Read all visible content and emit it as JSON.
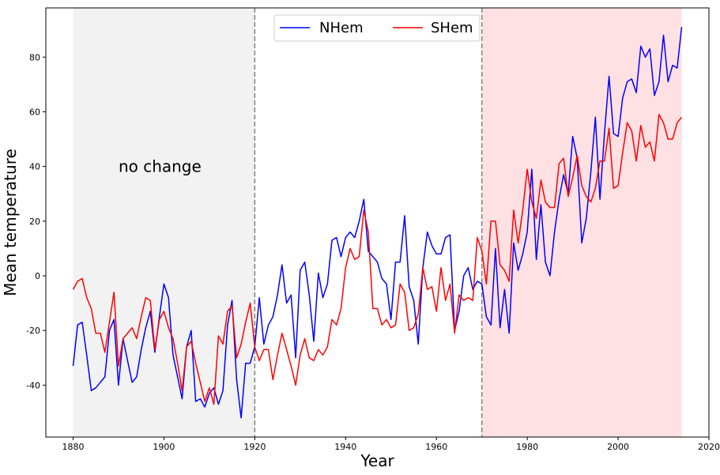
{
  "chart_data": {
    "type": "line",
    "xlabel": "Year",
    "ylabel": "Mean temperature",
    "xlim": [
      1874,
      2020
    ],
    "ylim": [
      -59,
      98
    ],
    "xticks": [
      1880,
      1900,
      1920,
      1940,
      1960,
      1980,
      2000,
      2020
    ],
    "yticks": [
      -40,
      -20,
      0,
      20,
      40,
      60,
      80
    ],
    "legend": {
      "placement": "top-center",
      "columns": 2
    },
    "grid": false,
    "annotations": [
      {
        "text": "no change",
        "x": 1890,
        "y": 40
      }
    ],
    "vlines": [
      {
        "x": 1920,
        "style": "dashed",
        "color": "#808080"
      },
      {
        "x": 1970,
        "style": "dashed",
        "color": "#808080"
      }
    ],
    "spans": [
      {
        "x_start": 1880,
        "x_end": 1920,
        "color": "#f2f2f2"
      },
      {
        "x_start": 1970,
        "x_end": 2014,
        "color": "#ffe0e3"
      }
    ],
    "x": [
      1880,
      1881,
      1882,
      1883,
      1884,
      1885,
      1886,
      1887,
      1888,
      1889,
      1890,
      1891,
      1892,
      1893,
      1894,
      1895,
      1896,
      1897,
      1898,
      1899,
      1900,
      1901,
      1902,
      1903,
      1904,
      1905,
      1906,
      1907,
      1908,
      1909,
      1910,
      1911,
      1912,
      1913,
      1914,
      1915,
      1916,
      1917,
      1918,
      1919,
      1920,
      1921,
      1922,
      1923,
      1924,
      1925,
      1926,
      1927,
      1928,
      1929,
      1930,
      1931,
      1932,
      1933,
      1934,
      1935,
      1936,
      1937,
      1938,
      1939,
      1940,
      1941,
      1942,
      1943,
      1944,
      1945,
      1946,
      1947,
      1948,
      1949,
      1950,
      1951,
      1952,
      1953,
      1954,
      1955,
      1956,
      1957,
      1958,
      1959,
      1960,
      1961,
      1962,
      1963,
      1964,
      1965,
      1966,
      1967,
      1968,
      1969,
      1970,
      1971,
      1972,
      1973,
      1974,
      1975,
      1976,
      1977,
      1978,
      1979,
      1980,
      1981,
      1982,
      1983,
      1984,
      1985,
      1986,
      1987,
      1988,
      1989,
      1990,
      1991,
      1992,
      1993,
      1994,
      1995,
      1996,
      1997,
      1998,
      1999,
      2000,
      2001,
      2002,
      2003,
      2004,
      2005,
      2006,
      2007,
      2008,
      2009,
      2010,
      2011,
      2012,
      2013,
      2014
    ],
    "series": [
      {
        "name": "NHem",
        "color": "#0000ff",
        "values": [
          -33,
          -18,
          -17,
          -29,
          -42,
          -41,
          -39,
          -37,
          -20,
          -16,
          -40,
          -23,
          -31,
          -39,
          -37,
          -27,
          -19,
          -13,
          -28,
          -15,
          -3,
          -8,
          -29,
          -37,
          -45,
          -26,
          -20,
          -46,
          -45,
          -48,
          -43,
          -41,
          -47,
          -42,
          -18,
          -9,
          -38,
          -52,
          -32,
          -32,
          -26,
          -8,
          -25,
          -18,
          -15,
          -7,
          4,
          -10,
          -7,
          -30,
          2,
          5,
          -7,
          -24,
          1,
          -8,
          -3,
          13,
          14,
          7,
          14,
          16,
          14,
          20,
          28,
          9,
          7,
          5,
          -1,
          -3,
          -16,
          5,
          5,
          22,
          -4,
          -9,
          -25,
          3,
          16,
          11,
          8,
          8,
          14,
          15,
          -20,
          -13,
          0,
          3,
          -5,
          -2,
          -3,
          -15,
          -18,
          10,
          -19,
          -5,
          -21,
          12,
          2,
          8,
          16,
          39,
          6,
          26,
          5,
          0,
          16,
          28,
          37,
          30,
          51,
          43,
          12,
          21,
          38,
          58,
          28,
          52,
          73,
          52,
          51,
          65,
          71,
          72,
          67,
          84,
          80,
          83,
          66,
          71,
          88,
          71,
          77,
          76,
          91
        ]
      },
      {
        "name": "SHem",
        "color": "#ff0000",
        "values": [
          -5,
          -2,
          -1,
          -8,
          -12,
          -21,
          -21,
          -28,
          -17,
          -6,
          -33,
          -23,
          -21,
          -19,
          -23,
          -15,
          -8,
          -9,
          -27,
          -16,
          -13,
          -19,
          -23,
          -32,
          -42,
          -26,
          -24,
          -32,
          -39,
          -46,
          -41,
          -47,
          -22,
          -25,
          -13,
          -11,
          -30,
          -25,
          -17,
          -10,
          -26,
          -31,
          -27,
          -27,
          -38,
          -29,
          -21,
          -27,
          -33,
          -40,
          -29,
          -23,
          -30,
          -31,
          -27,
          -29,
          -26,
          -16,
          -18,
          -12,
          3,
          10,
          6,
          7,
          24,
          16,
          -12,
          -12,
          -18,
          -16,
          -19,
          -18,
          -3,
          -6,
          -20,
          -19,
          -14,
          3,
          -5,
          -4,
          -13,
          3,
          -9,
          -3,
          -21,
          -7,
          -9,
          -8,
          -9,
          14,
          9,
          -3,
          20,
          20,
          4,
          2,
          -2,
          24,
          12,
          24,
          39,
          27,
          21,
          35,
          27,
          25,
          25,
          41,
          43,
          29,
          36,
          44,
          33,
          29,
          27,
          32,
          42,
          42,
          54,
          32,
          33,
          45,
          56,
          53,
          42,
          55,
          47,
          49,
          42,
          59,
          56,
          50,
          50,
          56,
          58
        ]
      }
    ]
  }
}
